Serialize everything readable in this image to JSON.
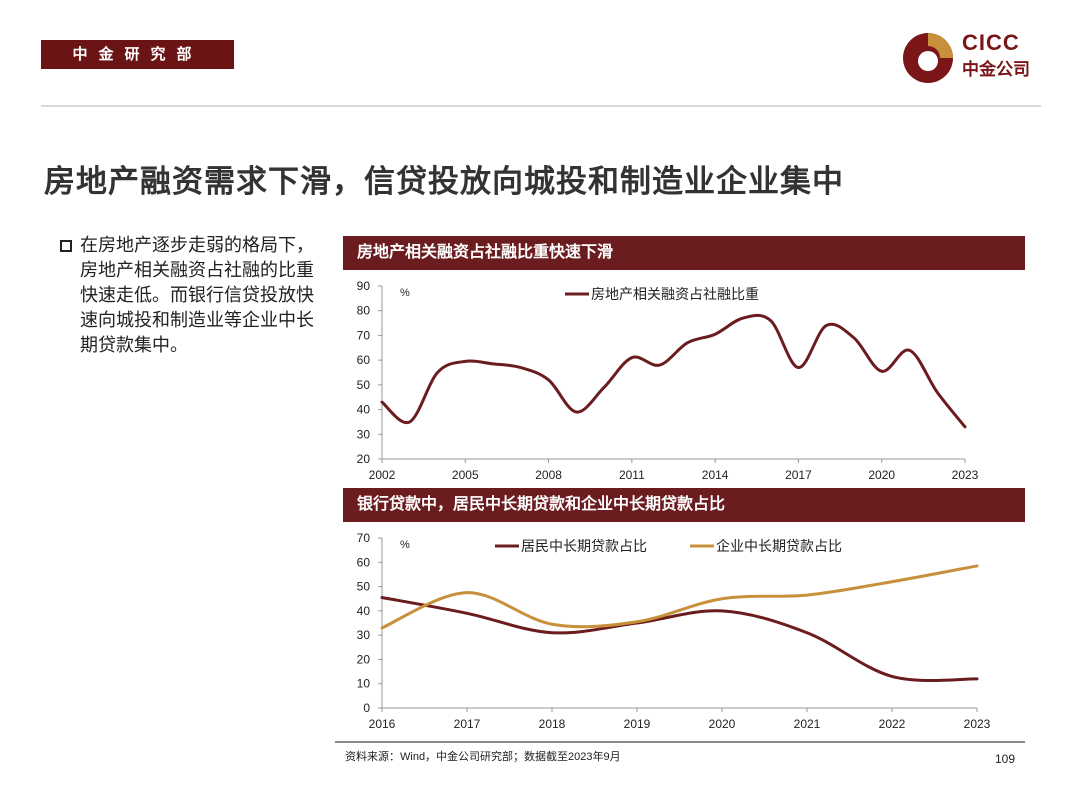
{
  "header": {
    "tag": "中金研究部",
    "logo_text_en": "CICC",
    "logo_text_cn": "中金公司"
  },
  "title": "房地产融资需求下滑，信贷投放向城投和制造业企业集中",
  "body": {
    "text": "在房地产逐步走弱的格局下，房地产相关融资占社融的比重快速走低。而银行信贷投放快速向城投和制造业等企业中长期贷款集中。"
  },
  "colors": {
    "maroon": "#6b1c1f",
    "gold": "#c8903a"
  },
  "chart_data": [
    {
      "type": "line",
      "title": "房地产相关融资占社融比重快速下滑",
      "unit": "%",
      "x": [
        2002,
        2003,
        2004,
        2005,
        2006,
        2007,
        2008,
        2009,
        2010,
        2011,
        2012,
        2013,
        2014,
        2015,
        2016,
        2017,
        2018,
        2019,
        2020,
        2021,
        2022,
        2023
      ],
      "xticks": [
        "2002",
        "2005",
        "2008",
        "2011",
        "2014",
        "2017",
        "2020",
        "2023"
      ],
      "yticks": [
        "20",
        "30",
        "40",
        "50",
        "60",
        "70",
        "80",
        "90"
      ],
      "ylim": [
        20,
        90
      ],
      "legend": "top-center",
      "grid": false,
      "series": [
        {
          "name": "房地产相关融资占社融比重",
          "color": "#6b1c1f",
          "values": [
            43,
            35,
            55,
            59.5,
            58.5,
            57,
            52,
            39,
            49,
            61,
            58,
            67,
            70.5,
            77,
            76,
            57,
            74,
            69,
            55.5,
            64,
            47,
            33
          ]
        }
      ]
    },
    {
      "type": "line",
      "title": "银行贷款中，居民中长期贷款和企业中长期贷款占比",
      "unit": "%",
      "x": [
        2016,
        2017,
        2018,
        2019,
        2020,
        2021,
        2022,
        2023
      ],
      "xticks": [
        "2016",
        "2017",
        "2018",
        "2019",
        "2020",
        "2021",
        "2022",
        "2023"
      ],
      "yticks": [
        "0",
        "10",
        "20",
        "30",
        "40",
        "50",
        "60",
        "70"
      ],
      "ylim": [
        0,
        70
      ],
      "legend": "top-center",
      "grid": false,
      "series": [
        {
          "name": "居民中长期贷款占比",
          "color": "#6b1c1f",
          "values": [
            45.5,
            39,
            31,
            35,
            40,
            31,
            13,
            12
          ]
        },
        {
          "name": "企业中长期贷款占比",
          "color": "#c8903a",
          "values": [
            33,
            47.5,
            34.5,
            35.5,
            45,
            46.5,
            52,
            58.5
          ]
        }
      ]
    }
  ],
  "footer": {
    "source": "资料来源：Wind，中金公司研究部；数据截至2023年9月",
    "page": "109"
  }
}
